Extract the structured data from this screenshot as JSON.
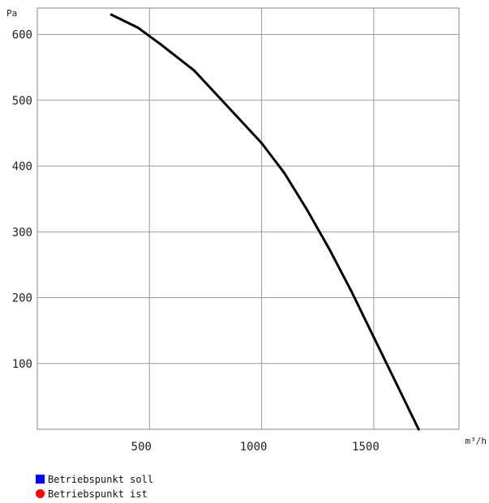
{
  "chart_data": {
    "type": "line",
    "ylabel": "Pa",
    "xlabel": "m³/h",
    "xlim": [
      0,
      1880
    ],
    "ylim": [
      0,
      640
    ],
    "x_ticks": [
      500,
      1000,
      1500
    ],
    "y_ticks": [
      100,
      200,
      300,
      400,
      500,
      600
    ],
    "grid": true,
    "series": [
      {
        "color": "#000000",
        "x": [
          330,
          450,
          550,
          700,
          850,
          1000,
          1100,
          1200,
          1300,
          1400,
          1500,
          1600,
          1700
        ],
        "y": [
          630,
          610,
          585,
          545,
          490,
          435,
          390,
          335,
          275,
          210,
          140,
          70,
          0
        ]
      }
    ]
  },
  "legend": [
    {
      "label": "Betriebspunkt soll",
      "color": "#0000ff",
      "icon": "square"
    },
    {
      "label": "Betriebspunkt ist",
      "color": "#ff0000",
      "icon": "circle"
    }
  ]
}
